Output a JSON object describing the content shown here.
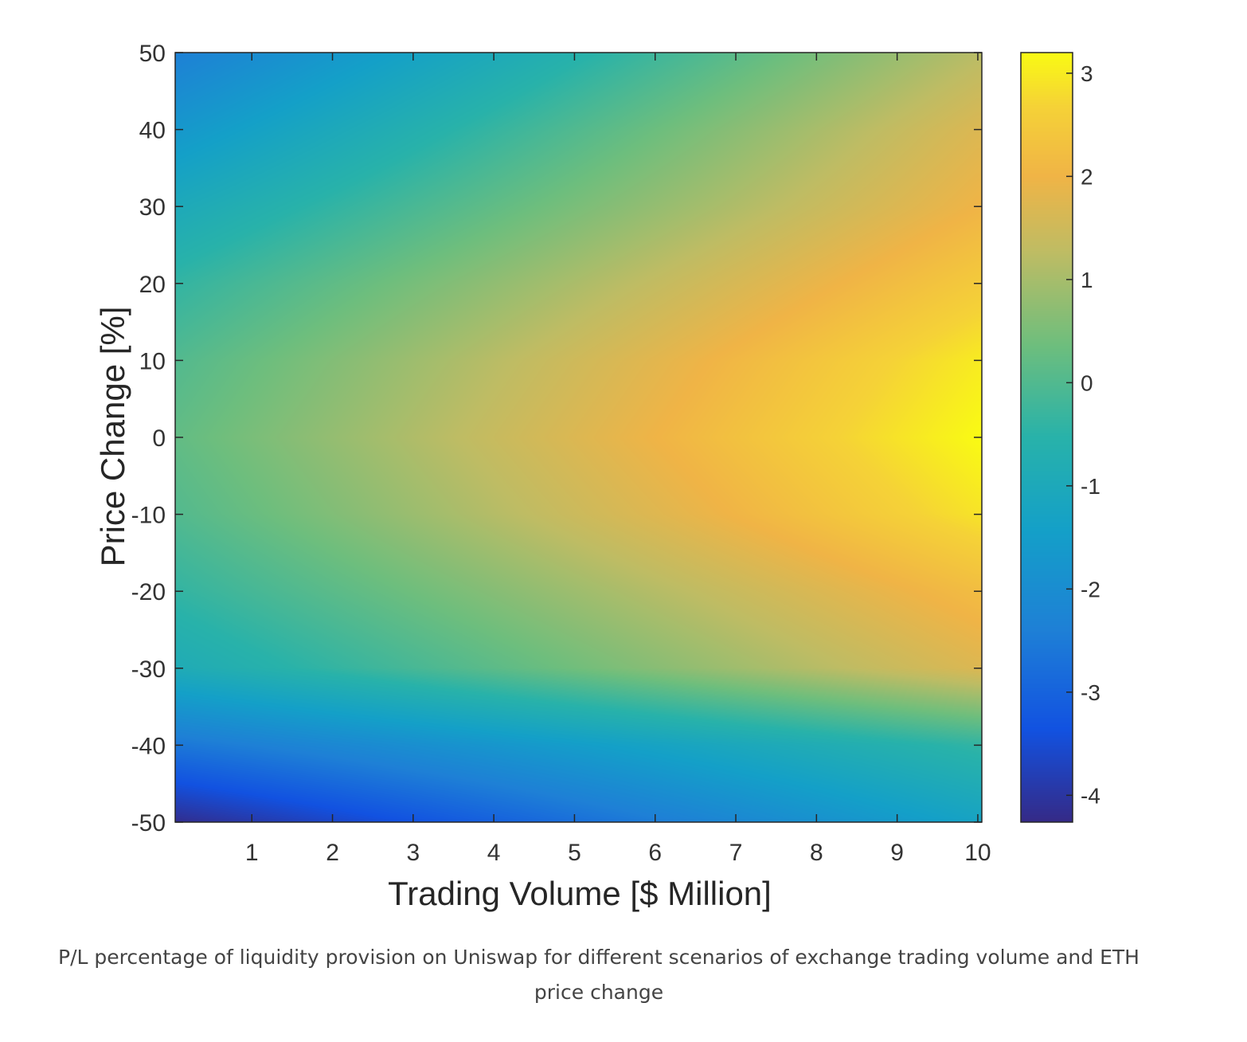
{
  "chart_data": {
    "type": "heatmap",
    "xlabel": "Trading Volume [$ Million]",
    "ylabel": "Price Change [%]",
    "xlim": [
      0.05,
      10.05
    ],
    "ylim": [
      -50,
      50
    ],
    "xticks": [
      1,
      2,
      3,
      4,
      5,
      6,
      7,
      8,
      9,
      10
    ],
    "yticks": [
      50,
      40,
      30,
      20,
      10,
      0,
      -10,
      -20,
      -30,
      -40,
      -50
    ],
    "x": [
      0,
      5,
      10
    ],
    "y": [
      50,
      40,
      30,
      20,
      10,
      0,
      -10,
      -20,
      -30,
      -40,
      -50
    ],
    "z": [
      [
        -2.4,
        -0.6,
        1.2
      ],
      [
        -1.7,
        0.0,
        1.7
      ],
      [
        -1.0,
        0.5,
        2.0
      ],
      [
        -0.4,
        1.05,
        2.5
      ],
      [
        0.0,
        1.5,
        3.0
      ],
      [
        0.2,
        1.7,
        3.2
      ],
      [
        0.0,
        1.45,
        2.9
      ],
      [
        -0.4,
        0.9,
        2.2
      ],
      [
        -0.9,
        0.4,
        1.7
      ],
      [
        -2.6,
        -1.5,
        -0.4
      ],
      [
        -4.2,
        -2.75,
        -1.3
      ]
    ],
    "colormap": "parula",
    "colorbar": {
      "range": [
        -4.26,
        3.2
      ],
      "ticks": [
        3,
        2,
        1,
        0,
        -1,
        -2,
        -3,
        -4
      ],
      "placement": "right"
    },
    "grid": false
  },
  "caption": "P/L percentage of liquidity provision on Uniswap for different scenarios of exchange trading volume and ETH price change"
}
